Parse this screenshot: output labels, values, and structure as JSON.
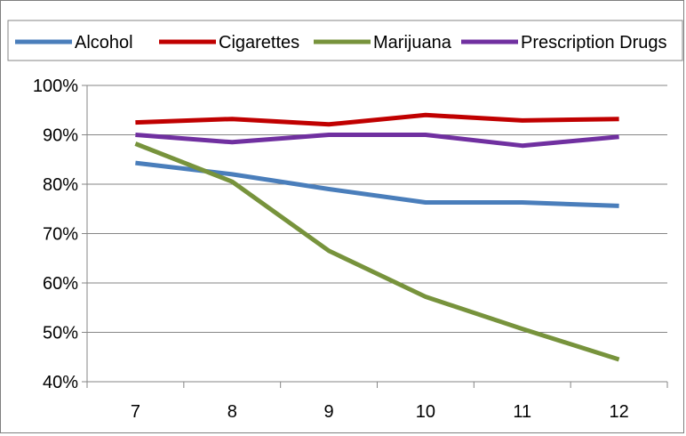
{
  "chart_data": {
    "type": "line",
    "title": "",
    "xlabel": "",
    "ylabel": "",
    "categories": [
      "7",
      "8",
      "9",
      "10",
      "11",
      "12"
    ],
    "ylim": [
      0.4,
      1.0
    ],
    "y_ticks": [
      "40%",
      "50%",
      "60%",
      "70%",
      "80%",
      "90%",
      "100%"
    ],
    "y_tick_values": [
      0.4,
      0.5,
      0.6,
      0.7,
      0.8,
      0.9,
      1.0
    ],
    "grid": true,
    "legend_position": "top",
    "series": [
      {
        "name": "Alcohol",
        "color": "#4a7ebb",
        "values": [
          0.843,
          0.82,
          0.79,
          0.763,
          0.763,
          0.756
        ]
      },
      {
        "name": "Cigarettes",
        "color": "#c00000",
        "values": [
          0.925,
          0.932,
          0.921,
          0.94,
          0.929,
          0.932
        ]
      },
      {
        "name": "Marijuana",
        "color": "#77933c",
        "values": [
          0.882,
          0.805,
          0.665,
          0.572,
          0.507,
          0.445
        ]
      },
      {
        "name": "Prescription Drugs",
        "color": "#7030a0",
        "values": [
          0.9,
          0.885,
          0.9,
          0.9,
          0.878,
          0.896
        ]
      }
    ]
  }
}
